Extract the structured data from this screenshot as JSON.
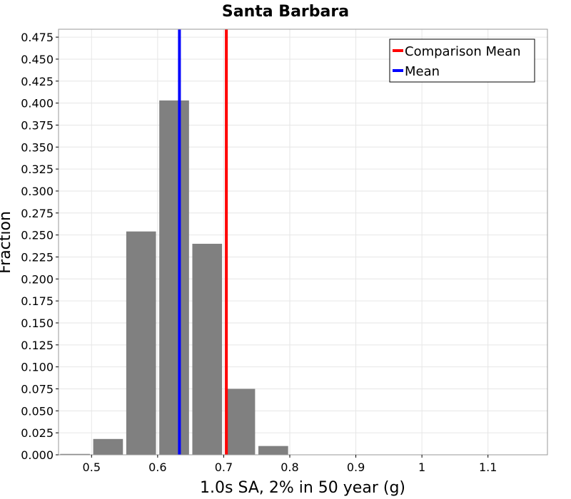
{
  "chart_data": {
    "type": "bar",
    "title": "Santa Barbara",
    "xlabel": "1.0s SA, 2% in 50 year (g)",
    "ylabel": "Fraction",
    "xlim": [
      0.45,
      1.19
    ],
    "ylim": [
      0,
      0.484
    ],
    "xticks": [
      0.5,
      0.6,
      0.7,
      0.8,
      0.9,
      1,
      1.1
    ],
    "xtick_labels": [
      "0.5",
      "0.6",
      "0.7",
      "0.8",
      "0.9",
      "1",
      "1.1"
    ],
    "yticks": [
      0,
      0.025,
      0.05,
      0.075,
      0.1,
      0.125,
      0.15,
      0.175,
      0.2,
      0.225,
      0.25,
      0.275,
      0.3,
      0.325,
      0.35,
      0.375,
      0.4,
      0.425,
      0.45,
      0.475
    ],
    "ytick_labels": [
      "0.000",
      "0.025",
      "0.050",
      "0.075",
      "0.100",
      "0.125",
      "0.150",
      "0.175",
      "0.200",
      "0.225",
      "0.250",
      "0.275",
      "0.300",
      "0.325",
      "0.350",
      "0.375",
      "0.400",
      "0.425",
      "0.450",
      "0.475"
    ],
    "grid": true,
    "bar_width": 0.045,
    "bins": [
      {
        "center": 0.475,
        "value": 0.001
      },
      {
        "center": 0.525,
        "value": 0.018
      },
      {
        "center": 0.575,
        "value": 0.254
      },
      {
        "center": 0.625,
        "value": 0.403
      },
      {
        "center": 0.675,
        "value": 0.24
      },
      {
        "center": 0.725,
        "value": 0.075
      },
      {
        "center": 0.775,
        "value": 0.01
      }
    ],
    "bar_color": "#808080",
    "vlines": [
      {
        "name": "Comparison Mean",
        "x": 0.704,
        "color": "#ff0000"
      },
      {
        "name": "Mean",
        "x": 0.633,
        "color": "#0000ff"
      }
    ],
    "legend": {
      "placement": "top-right",
      "entries": [
        {
          "label": "Comparison Mean",
          "color": "#ff0000"
        },
        {
          "label": "Mean",
          "color": "#0000ff"
        }
      ]
    }
  }
}
